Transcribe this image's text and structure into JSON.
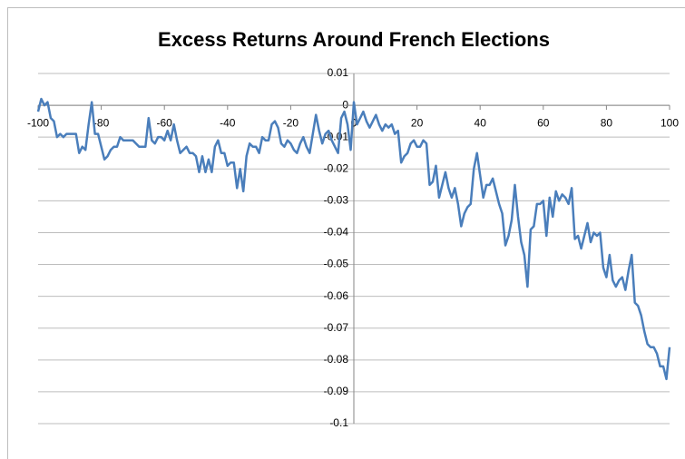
{
  "chart_data": {
    "type": "line",
    "title": "Excess Returns Around French Elections",
    "x": [
      -100,
      -99,
      -98,
      -97,
      -96,
      -95,
      -94,
      -93,
      -92,
      -91,
      -90,
      -89,
      -88,
      -87,
      -86,
      -85,
      -84,
      -83,
      -82,
      -81,
      -80,
      -79,
      -78,
      -77,
      -76,
      -75,
      -74,
      -73,
      -72,
      -71,
      -70,
      -69,
      -68,
      -67,
      -66,
      -65,
      -64,
      -63,
      -62,
      -61,
      -60,
      -59,
      -58,
      -57,
      -56,
      -55,
      -54,
      -53,
      -52,
      -51,
      -50,
      -49,
      -48,
      -47,
      -46,
      -45,
      -44,
      -43,
      -42,
      -41,
      -40,
      -39,
      -38,
      -37,
      -36,
      -35,
      -34,
      -33,
      -32,
      -31,
      -30,
      -29,
      -28,
      -27,
      -26,
      -25,
      -24,
      -23,
      -22,
      -21,
      -20,
      -19,
      -18,
      -17,
      -16,
      -15,
      -14,
      -13,
      -12,
      -11,
      -10,
      -9,
      -8,
      -7,
      -6,
      -5,
      -4,
      -3,
      -2,
      -1,
      0,
      1,
      2,
      3,
      4,
      5,
      6,
      7,
      8,
      9,
      10,
      11,
      12,
      13,
      14,
      15,
      16,
      17,
      18,
      19,
      20,
      21,
      22,
      23,
      24,
      25,
      26,
      27,
      28,
      29,
      30,
      31,
      32,
      33,
      34,
      35,
      36,
      37,
      38,
      39,
      40,
      41,
      42,
      43,
      44,
      45,
      46,
      47,
      48,
      49,
      50,
      51,
      52,
      53,
      54,
      55,
      56,
      57,
      58,
      59,
      60,
      61,
      62,
      63,
      64,
      65,
      66,
      67,
      68,
      69,
      70,
      71,
      72,
      73,
      74,
      75,
      76,
      77,
      78,
      79,
      80,
      81,
      82,
      83,
      84,
      85,
      86,
      87,
      88,
      89,
      90,
      91,
      92,
      93,
      94,
      95,
      96,
      97,
      98,
      99,
      100
    ],
    "series": [
      {
        "color": "#4a7ebb",
        "values": [
          -0.002,
          0.002,
          0,
          0.001,
          -0.004,
          -0.005,
          -0.01,
          -0.009,
          -0.01,
          -0.009,
          -0.009,
          -0.009,
          -0.009,
          -0.015,
          -0.013,
          -0.014,
          -0.006,
          0.001,
          -0.009,
          -0.009,
          -0.013,
          -0.017,
          -0.016,
          -0.014,
          -0.013,
          -0.013,
          -0.01,
          -0.011,
          -0.011,
          -0.011,
          -0.011,
          -0.012,
          -0.013,
          -0.013,
          -0.013,
          -0.004,
          -0.011,
          -0.012,
          -0.01,
          -0.01,
          -0.011,
          -0.008,
          -0.011,
          -0.006,
          -0.011,
          -0.015,
          -0.014,
          -0.013,
          -0.015,
          -0.015,
          -0.016,
          -0.021,
          -0.016,
          -0.021,
          -0.017,
          -0.021,
          -0.013,
          -0.011,
          -0.015,
          -0.015,
          -0.019,
          -0.018,
          -0.018,
          -0.026,
          -0.02,
          -0.027,
          -0.016,
          -0.012,
          -0.013,
          -0.013,
          -0.015,
          -0.01,
          -0.011,
          -0.011,
          -0.006,
          -0.005,
          -0.007,
          -0.012,
          -0.013,
          -0.011,
          -0.012,
          -0.014,
          -0.015,
          -0.012,
          -0.01,
          -0.013,
          -0.015,
          -0.009,
          -0.003,
          -0.008,
          -0.012,
          -0.009,
          -0.008,
          -0.011,
          -0.013,
          -0.015,
          -0.004,
          -0.002,
          -0.006,
          -0.014,
          0.001,
          -0.006,
          -0.004,
          -0.002,
          -0.005,
          -0.007,
          -0.005,
          -0.003,
          -0.006,
          -0.008,
          -0.006,
          -0.007,
          -0.006,
          -0.009,
          -0.008,
          -0.018,
          -0.016,
          -0.015,
          -0.012,
          -0.011,
          -0.013,
          -0.013,
          -0.011,
          -0.012,
          -0.025,
          -0.024,
          -0.019,
          -0.029,
          -0.025,
          -0.021,
          -0.026,
          -0.029,
          -0.026,
          -0.031,
          -0.038,
          -0.034,
          -0.032,
          -0.031,
          -0.02,
          -0.015,
          -0.022,
          -0.029,
          -0.025,
          -0.025,
          -0.023,
          -0.027,
          -0.031,
          -0.034,
          -0.044,
          -0.041,
          -0.036,
          -0.025,
          -0.035,
          -0.043,
          -0.047,
          -0.057,
          -0.039,
          -0.038,
          -0.031,
          -0.031,
          -0.03,
          -0.041,
          -0.029,
          -0.035,
          -0.027,
          -0.03,
          -0.028,
          -0.029,
          -0.031,
          -0.026,
          -0.042,
          -0.041,
          -0.045,
          -0.041,
          -0.037,
          -0.043,
          -0.04,
          -0.041,
          -0.04,
          -0.051,
          -0.054,
          -0.047,
          -0.055,
          -0.057,
          -0.055,
          -0.054,
          -0.058,
          -0.052,
          -0.047,
          -0.062,
          -0.063,
          -0.066,
          -0.071,
          -0.075,
          -0.076,
          -0.076,
          -0.078,
          -0.082,
          -0.082,
          -0.086,
          -0.076
        ]
      }
    ],
    "xlim": [
      -100,
      100
    ],
    "xticks": [
      -100,
      -80,
      -60,
      -40,
      -20,
      0,
      20,
      40,
      60,
      80,
      100
    ],
    "ylim": [
      -0.1,
      0.01
    ],
    "yticks": [
      0.01,
      0,
      -0.01,
      -0.02,
      -0.03,
      -0.04,
      -0.05,
      -0.06,
      -0.07,
      -0.08,
      -0.09,
      -0.1
    ],
    "grid": true
  }
}
